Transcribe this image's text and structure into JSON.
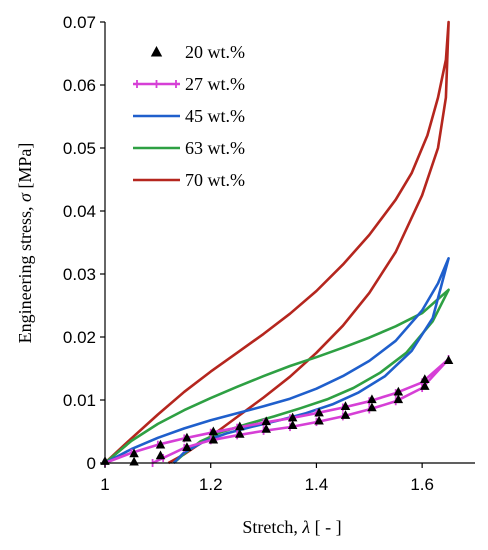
{
  "chart_data": {
    "type": "line",
    "xlabel": "Stretch, λ [ - ]",
    "xlabel_prefix": "Stretch, ",
    "xlabel_symbol": "λ",
    "xlabel_suffix": " [ - ]",
    "ylabel": "Engineering stress, σ [MPa]",
    "ylabel_prefix": "Engineering stress, ",
    "ylabel_symbol": "σ",
    "ylabel_suffix": " [MPa]",
    "xlim": [
      1,
      1.7
    ],
    "ylim": [
      0,
      0.07
    ],
    "xticks": [
      1,
      1.2,
      1.4,
      1.6
    ],
    "xtick_labels": [
      "1",
      "1.2",
      "1.4",
      "1.6"
    ],
    "yticks": [
      0,
      0.01,
      0.02,
      0.03,
      0.04,
      0.05,
      0.06,
      0.07
    ],
    "ytick_labels": [
      "0",
      "0.01",
      "0.02",
      "0.03",
      "0.04",
      "0.05",
      "0.06",
      "0.07"
    ],
    "grid": false,
    "legend_position": "top-left",
    "series": [
      {
        "name": "20 wt.%",
        "style": "markers",
        "color": "#000000",
        "marker": "triangle",
        "points": [
          [
            1.0,
            0.0003
          ],
          [
            1.055,
            0.0015
          ],
          [
            1.055,
            0.0002
          ],
          [
            1.105,
            0.0029
          ],
          [
            1.105,
            0.0012
          ],
          [
            1.155,
            0.004
          ],
          [
            1.155,
            0.0025
          ],
          [
            1.205,
            0.005
          ],
          [
            1.205,
            0.0037
          ],
          [
            1.255,
            0.0058
          ],
          [
            1.255,
            0.0046
          ],
          [
            1.305,
            0.0066
          ],
          [
            1.305,
            0.0054
          ],
          [
            1.355,
            0.0072
          ],
          [
            1.355,
            0.006
          ],
          [
            1.405,
            0.008
          ],
          [
            1.405,
            0.0067
          ],
          [
            1.455,
            0.009
          ],
          [
            1.455,
            0.0076
          ],
          [
            1.505,
            0.0101
          ],
          [
            1.505,
            0.0088
          ],
          [
            1.555,
            0.0113
          ],
          [
            1.555,
            0.0101
          ],
          [
            1.605,
            0.0133
          ],
          [
            1.605,
            0.0122
          ],
          [
            1.65,
            0.0163
          ]
        ]
      },
      {
        "name": "27 wt.%",
        "style": "line-markers",
        "color": "#d63fd6",
        "points": [
          [
            1.0,
            0.0
          ],
          [
            1.05,
            0.0016
          ],
          [
            1.1,
            0.0029
          ],
          [
            1.15,
            0.0039
          ],
          [
            1.2,
            0.0048
          ],
          [
            1.25,
            0.0056
          ],
          [
            1.3,
            0.0064
          ],
          [
            1.35,
            0.0071
          ],
          [
            1.4,
            0.0079
          ],
          [
            1.45,
            0.0088
          ],
          [
            1.5,
            0.0098
          ],
          [
            1.55,
            0.0111
          ],
          [
            1.6,
            0.0128
          ],
          [
            1.65,
            0.0165
          ],
          [
            1.6,
            0.0119
          ],
          [
            1.55,
            0.0098
          ],
          [
            1.5,
            0.0085
          ],
          [
            1.45,
            0.0074
          ],
          [
            1.4,
            0.0065
          ],
          [
            1.35,
            0.0057
          ],
          [
            1.3,
            0.0051
          ],
          [
            1.25,
            0.0044
          ],
          [
            1.2,
            0.0036
          ],
          [
            1.15,
            0.0024
          ],
          [
            1.11,
            0.0008
          ],
          [
            1.09,
            0.0
          ]
        ]
      },
      {
        "name": "45 wt.%",
        "style": "line",
        "color": "#1f5fcc",
        "points": [
          [
            1.0,
            0.0
          ],
          [
            1.05,
            0.0022
          ],
          [
            1.1,
            0.004
          ],
          [
            1.15,
            0.0055
          ],
          [
            1.2,
            0.0068
          ],
          [
            1.25,
            0.0079
          ],
          [
            1.3,
            0.009
          ],
          [
            1.35,
            0.0102
          ],
          [
            1.4,
            0.0118
          ],
          [
            1.45,
            0.0138
          ],
          [
            1.5,
            0.0162
          ],
          [
            1.55,
            0.0194
          ],
          [
            1.6,
            0.0242
          ],
          [
            1.63,
            0.0285
          ],
          [
            1.65,
            0.0325
          ],
          [
            1.62,
            0.023
          ],
          [
            1.58,
            0.0178
          ],
          [
            1.53,
            0.0138
          ],
          [
            1.48,
            0.0112
          ],
          [
            1.43,
            0.0093
          ],
          [
            1.38,
            0.0079
          ],
          [
            1.33,
            0.0068
          ],
          [
            1.28,
            0.0058
          ],
          [
            1.23,
            0.0047
          ],
          [
            1.19,
            0.0035
          ],
          [
            1.15,
            0.0017
          ],
          [
            1.13,
            0.0
          ]
        ]
      },
      {
        "name": "63 wt.%",
        "style": "line",
        "color": "#2ea043",
        "points": [
          [
            1.0,
            0.0
          ],
          [
            1.05,
            0.0035
          ],
          [
            1.1,
            0.0062
          ],
          [
            1.15,
            0.0084
          ],
          [
            1.2,
            0.0103
          ],
          [
            1.25,
            0.0121
          ],
          [
            1.3,
            0.0138
          ],
          [
            1.35,
            0.0154
          ],
          [
            1.4,
            0.0168
          ],
          [
            1.45,
            0.0183
          ],
          [
            1.5,
            0.0199
          ],
          [
            1.55,
            0.0217
          ],
          [
            1.6,
            0.0238
          ],
          [
            1.65,
            0.0275
          ],
          [
            1.62,
            0.0225
          ],
          [
            1.57,
            0.0175
          ],
          [
            1.52,
            0.0143
          ],
          [
            1.47,
            0.0119
          ],
          [
            1.42,
            0.0101
          ],
          [
            1.37,
            0.0087
          ],
          [
            1.32,
            0.0074
          ],
          [
            1.27,
            0.0062
          ],
          [
            1.22,
            0.0049
          ],
          [
            1.18,
            0.0034
          ],
          [
            1.15,
            0.0015
          ],
          [
            1.13,
            0.0
          ]
        ]
      },
      {
        "name": "70 wt.%",
        "style": "line",
        "color": "#b5261e",
        "points": [
          [
            1.0,
            0.0
          ],
          [
            1.05,
            0.0039
          ],
          [
            1.1,
            0.0077
          ],
          [
            1.15,
            0.0113
          ],
          [
            1.2,
            0.0145
          ],
          [
            1.25,
            0.0175
          ],
          [
            1.3,
            0.0205
          ],
          [
            1.35,
            0.0237
          ],
          [
            1.4,
            0.0273
          ],
          [
            1.45,
            0.0315
          ],
          [
            1.5,
            0.0362
          ],
          [
            1.55,
            0.0418
          ],
          [
            1.58,
            0.046
          ],
          [
            1.61,
            0.052
          ],
          [
            1.63,
            0.058
          ],
          [
            1.645,
            0.064
          ],
          [
            1.65,
            0.07
          ],
          [
            1.645,
            0.058
          ],
          [
            1.63,
            0.05
          ],
          [
            1.6,
            0.0425
          ],
          [
            1.55,
            0.0335
          ],
          [
            1.5,
            0.027
          ],
          [
            1.45,
            0.0218
          ],
          [
            1.4,
            0.0175
          ],
          [
            1.35,
            0.0137
          ],
          [
            1.3,
            0.0104
          ],
          [
            1.25,
            0.0073
          ],
          [
            1.2,
            0.0042
          ],
          [
            1.15,
            0.0014
          ],
          [
            1.12,
            0.0
          ]
        ]
      }
    ]
  }
}
